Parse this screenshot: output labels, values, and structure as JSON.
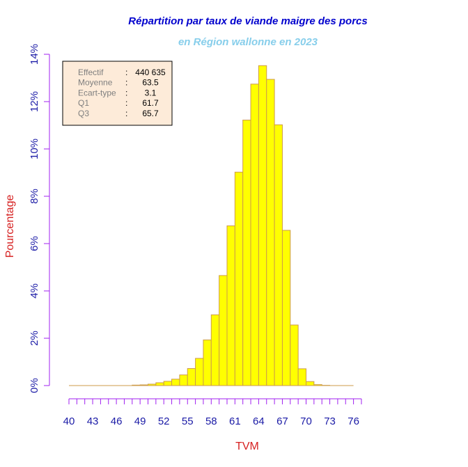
{
  "chart_data": {
    "type": "bar",
    "title": "Répartition par taux de viande maigre des porcs",
    "subtitle": "en Région wallonne en 2023",
    "xlabel": "TVM",
    "ylabel": "Pourcentage",
    "x_ticks": [
      "40",
      "43",
      "46",
      "49",
      "52",
      "55",
      "58",
      "61",
      "64",
      "67",
      "70",
      "73",
      "76"
    ],
    "y_ticks": [
      "0%",
      "2%",
      "4%",
      "6%",
      "8%",
      "10%",
      "12%",
      "14%"
    ],
    "xlim": [
      40,
      77
    ],
    "ylim": [
      0,
      14
    ],
    "bin_width": 1,
    "bin_starts": [
      40,
      41,
      42,
      43,
      44,
      45,
      46,
      47,
      48,
      49,
      50,
      51,
      52,
      53,
      54,
      55,
      56,
      57,
      58,
      59,
      60,
      61,
      62,
      63,
      64,
      65,
      66,
      67,
      68,
      69,
      70,
      71,
      72,
      73,
      74,
      75
    ],
    "values": [
      0,
      0,
      0,
      0,
      0,
      0,
      0,
      0,
      0.02,
      0.03,
      0.06,
      0.12,
      0.18,
      0.27,
      0.45,
      0.72,
      1.15,
      1.93,
      2.99,
      4.65,
      6.75,
      9.02,
      11.22,
      12.74,
      13.52,
      12.94,
      11.02,
      6.56,
      2.56,
      0.71,
      0.17,
      0.04,
      0.01,
      0,
      0,
      0
    ],
    "bar_color": "#ffff00",
    "bar_border_color": "#cd9b4a",
    "axis_color": "#a020f0",
    "grid": false,
    "legend": "none"
  },
  "stats": [
    {
      "label": "Effectif",
      "sep": ":",
      "value": "440 635"
    },
    {
      "label": "Moyenne",
      "sep": ":",
      "value": "63.5"
    },
    {
      "label": "Ecart-type",
      "sep": ":",
      "value": "3.1"
    },
    {
      "label": "Q1",
      "sep": ":",
      "value": "61.7"
    },
    {
      "label": "Q3",
      "sep": ":",
      "value": "65.7"
    }
  ],
  "colors": {
    "title": "#0000cd",
    "subtitle": "#87ceeb",
    "axis_label": "#d62020",
    "tick_label": "#1a1aa6",
    "stat_label": "#7f7f7f",
    "stat_value": "#000000",
    "stats_box_bg": "#fdebd9"
  }
}
